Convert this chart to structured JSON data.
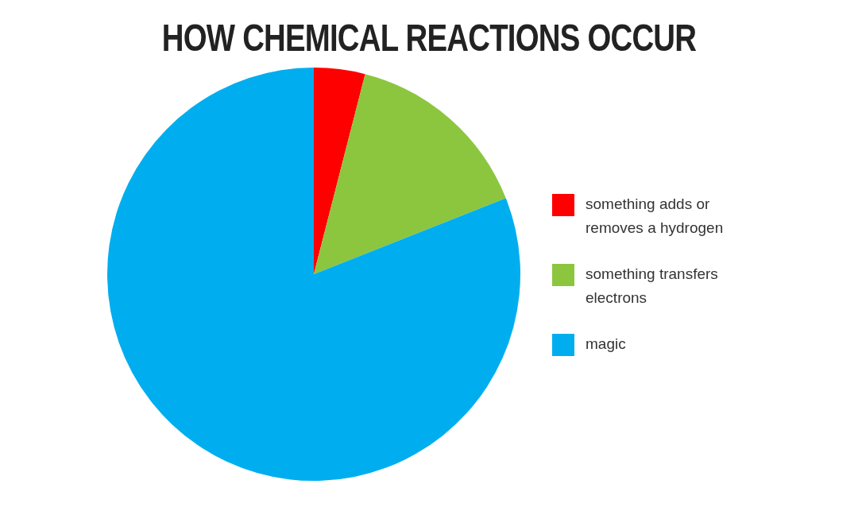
{
  "chart_data": {
    "type": "pie",
    "title": "HOW CHEMICAL REACTIONS OCCUR",
    "categories": [
      "something adds or removes a hydrogen",
      "something transfers electrons",
      "magic"
    ],
    "values": [
      4,
      15,
      81
    ],
    "colors": [
      "#ff0000",
      "#8cc63f",
      "#00aeef"
    ],
    "legend": "right"
  }
}
